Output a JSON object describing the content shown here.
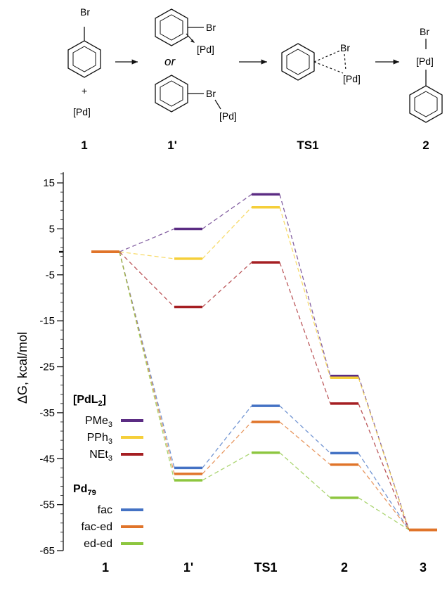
{
  "scheme": {
    "compound_labels": [
      "1",
      "1'",
      "TS1",
      "2"
    ],
    "texts": {
      "br": "Br",
      "pd": "[Pd]",
      "plus": "+",
      "or": "or"
    }
  },
  "chart_data": {
    "type": "line",
    "ylabel": "ΔG, kcal/mol",
    "xlabel": "",
    "categories": [
      "1",
      "1'",
      "TS1",
      "2",
      "3"
    ],
    "ylim": [
      -65,
      17
    ],
    "yticks": [
      15,
      5,
      -5,
      -15,
      -25,
      -35,
      -45,
      -55,
      -65
    ],
    "legend_groups": [
      {
        "title_main": "[PdL",
        "title_sub": "2",
        "title_end": "]",
        "bold_subscript": true
      },
      {
        "title_main": "Pd",
        "title_sub": "79",
        "title_end": "",
        "bold_subscript": true
      }
    ],
    "series": [
      {
        "name": "PMe",
        "name_sub": "3",
        "group": 0,
        "color": "#5b2c83",
        "values": [
          0,
          5,
          12.5,
          -27,
          -60.5
        ]
      },
      {
        "name": "PPh",
        "name_sub": "3",
        "group": 0,
        "color": "#f5cf3a",
        "values": [
          0,
          -1.5,
          9.7,
          -27.4,
          -60.5
        ]
      },
      {
        "name": "NEt",
        "name_sub": "3",
        "group": 0,
        "color": "#a51e22",
        "values": [
          0,
          -12,
          -2.3,
          -33,
          -60.5
        ]
      },
      {
        "name": "fac",
        "name_sub": "",
        "group": 1,
        "color": "#4472c4",
        "values": [
          0,
          -47,
          -33.5,
          -43.8,
          -60.5
        ]
      },
      {
        "name": "fac-ed",
        "name_sub": "",
        "group": 1,
        "color": "#e0742a",
        "values": [
          0,
          -48.3,
          -37,
          -46.3,
          -60.5
        ]
      },
      {
        "name": "ed-ed",
        "name_sub": "",
        "group": 1,
        "color": "#8dc63f",
        "values": [
          0,
          -49.7,
          -43.7,
          -53.5,
          -60.5
        ]
      }
    ],
    "shared_color_state1": "#e0742a",
    "shared_color_state3": "#e0742a"
  }
}
